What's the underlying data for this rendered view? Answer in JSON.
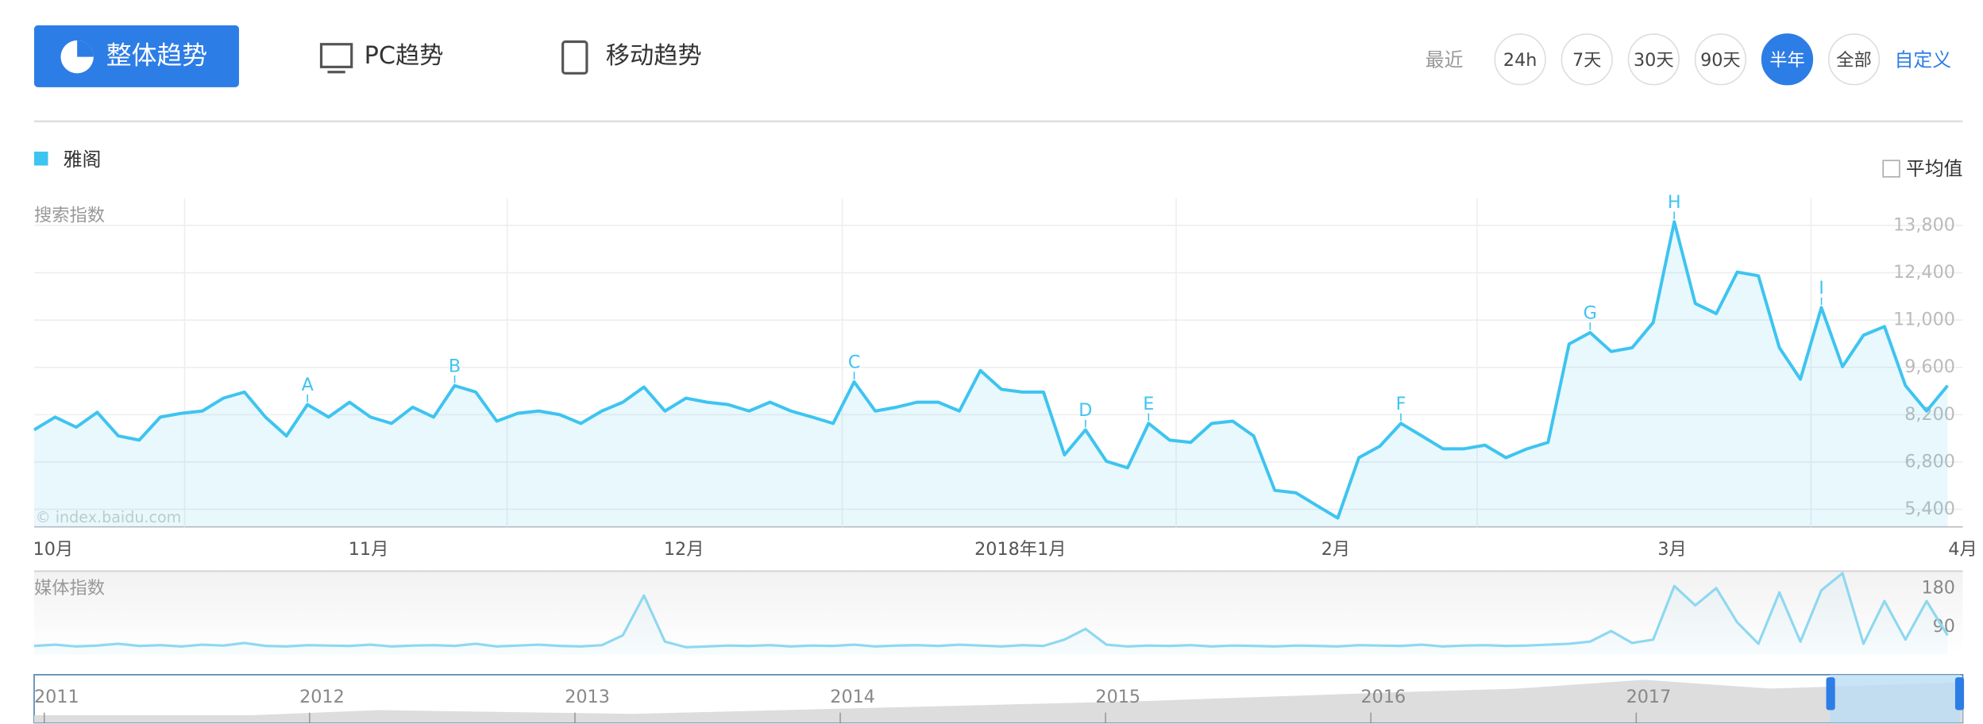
{
  "tabs": [
    "整体趋势",
    "PC趋势",
    "移动趋势"
  ],
  "range": {
    "label": "最近",
    "options": [
      "24h",
      "7天",
      "30天",
      "90天",
      "半年",
      "全部"
    ],
    "selected": "半年",
    "custom": "自定义"
  },
  "average_toggle": "平均值",
  "watermark": "© index.baidu.com",
  "chart_data": [
    {
      "type": "line",
      "ylabel": "搜索指数",
      "categories": [
        "10月",
        null,
        null,
        null,
        null,
        null,
        null,
        null,
        null,
        null,
        null,
        null,
        null,
        null,
        null,
        "11月",
        null,
        null,
        null,
        null,
        null,
        null,
        null,
        null,
        null,
        null,
        null,
        null,
        null,
        null,
        "12月",
        null,
        null,
        null,
        null,
        null,
        null,
        null,
        null,
        null,
        null,
        null,
        null,
        null,
        null,
        null,
        "2018年1月",
        null,
        null,
        null,
        null,
        null,
        null,
        null,
        null,
        null,
        null,
        null,
        null,
        null,
        null,
        "2月",
        null,
        null,
        null,
        null,
        null,
        null,
        null,
        null,
        null,
        null,
        null,
        null,
        null,
        null,
        null,
        "3月",
        null,
        null,
        null,
        null,
        null,
        null,
        null,
        null,
        null,
        null,
        null,
        null,
        null,
        "4月"
      ],
      "series": [
        {
          "name": "雅阁",
          "color": "#3ec4f0",
          "values": [
            7750,
            8130,
            7830,
            8270,
            7570,
            7450,
            8130,
            8240,
            8310,
            8690,
            8870,
            8130,
            7570,
            8500,
            8130,
            8570,
            8130,
            7940,
            8420,
            8130,
            9060,
            8870,
            8010,
            8240,
            8310,
            8200,
            7940,
            8310,
            8570,
            9020,
            8310,
            8690,
            8570,
            8500,
            8310,
            8570,
            8310,
            8130,
            7940,
            9170,
            8310,
            8420,
            8570,
            8570,
            8310,
            9510,
            8950,
            8870,
            8870,
            7010,
            7750,
            6820,
            6630,
            7940,
            7450,
            7380,
            7940,
            8010,
            7570,
            5960,
            5890,
            5510,
            5140,
            6930,
            7270,
            7940,
            7570,
            7190,
            7190,
            7300,
            6930,
            7190,
            7380,
            10290,
            10630,
            10070,
            10180,
            10930,
            13910,
            11490,
            11190,
            12420,
            12310,
            10180,
            9250,
            11370,
            9620,
            10550,
            10810,
            9060,
            8310,
            9060
          ]
        }
      ],
      "ylim": [
        4880,
        14600
      ],
      "yticks": [
        {
          "value": 5400,
          "label": "5,400"
        },
        {
          "value": 6800,
          "label": "6,800"
        },
        {
          "value": 8200,
          "label": "8,200"
        },
        {
          "value": 9600,
          "label": "9,600"
        },
        {
          "value": 11000,
          "label": "11,000"
        },
        {
          "value": 12400,
          "label": "12,400"
        },
        {
          "value": 13800,
          "label": "13,800"
        }
      ],
      "grid": true,
      "annotations": [
        {
          "text": "A",
          "index": 13
        },
        {
          "text": "B",
          "index": 20
        },
        {
          "text": "C",
          "index": 39
        },
        {
          "text": "D",
          "index": 50
        },
        {
          "text": "E",
          "index": 53
        },
        {
          "text": "F",
          "index": 65
        },
        {
          "text": "G",
          "index": 74
        },
        {
          "text": "H",
          "index": 78
        },
        {
          "text": "I",
          "index": 85
        }
      ]
    },
    {
      "type": "line",
      "ylabel": "媒体指数",
      "series": [
        {
          "color": "#8fd8f0",
          "values": [
            45,
            48,
            44,
            46,
            50,
            45,
            47,
            44,
            48,
            46,
            52,
            45,
            44,
            47,
            46,
            45,
            48,
            44,
            46,
            47,
            45,
            50,
            44,
            46,
            48,
            45,
            44,
            47,
            70,
            163,
            55,
            42,
            44,
            46,
            45,
            47,
            44,
            46,
            45,
            48,
            44,
            46,
            47,
            45,
            48,
            46,
            44,
            47,
            45,
            60,
            85,
            48,
            44,
            46,
            45,
            47,
            44,
            46,
            45,
            44,
            46,
            45,
            44,
            47,
            46,
            45,
            48,
            44,
            46,
            47,
            45,
            46,
            48,
            50,
            55,
            80,
            52,
            60,
            185,
            140,
            180,
            100,
            50,
            170,
            55,
            175,
            215,
            50,
            150,
            60,
            150,
            70
          ]
        }
      ],
      "ylim": [
        25,
        220
      ],
      "yticks": [
        90,
        180
      ]
    }
  ],
  "timeline": [
    "2011",
    "2012",
    "2013",
    "2014",
    "2015",
    "2016",
    "2017"
  ]
}
